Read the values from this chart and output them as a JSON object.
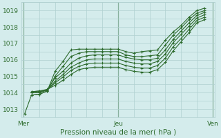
{
  "title": "",
  "xlabel": "Pression niveau de la mer( hPa )",
  "ylabel": "",
  "bg_color": "#d4ecec",
  "grid_color": "#b0d0d0",
  "line_color": "#2d6b2d",
  "x_ticks": [
    0,
    48,
    96
  ],
  "x_tick_labels": [
    "Mer",
    "Jeu",
    "Ven"
  ],
  "ylim": [
    1012.5,
    1019.5
  ],
  "yticks": [
    1013,
    1014,
    1015,
    1016,
    1017,
    1018,
    1019
  ],
  "xlim": [
    -1,
    97
  ],
  "series": [
    [
      0.5,
      1012.7,
      4,
      1013.85,
      8,
      1013.9,
      12,
      1014.1,
      16,
      1015.3,
      20,
      1015.9,
      24,
      1016.6,
      28,
      1016.65,
      32,
      1016.65,
      36,
      1016.65,
      40,
      1016.65,
      44,
      1016.65,
      48,
      1016.65,
      52,
      1016.5,
      56,
      1016.4,
      60,
      1016.5,
      64,
      1016.55,
      68,
      1016.6,
      72,
      1017.2,
      76,
      1017.7,
      80,
      1018.1,
      84,
      1018.6,
      88,
      1019.0,
      92,
      1019.15
    ],
    [
      4,
      1013.85,
      8,
      1013.9,
      12,
      1014.1,
      16,
      1015.0,
      20,
      1015.6,
      24,
      1016.2,
      28,
      1016.4,
      32,
      1016.5,
      36,
      1016.5,
      40,
      1016.5,
      44,
      1016.5,
      48,
      1016.5,
      52,
      1016.3,
      56,
      1016.2,
      60,
      1016.2,
      64,
      1016.25,
      68,
      1016.3,
      72,
      1016.9,
      76,
      1017.5,
      80,
      1017.95,
      84,
      1018.45,
      88,
      1018.85,
      92,
      1019.0
    ],
    [
      4,
      1014.0,
      8,
      1014.0,
      12,
      1014.15,
      16,
      1014.9,
      20,
      1015.3,
      24,
      1015.8,
      28,
      1016.1,
      32,
      1016.25,
      36,
      1016.3,
      40,
      1016.3,
      44,
      1016.3,
      48,
      1016.3,
      52,
      1016.15,
      56,
      1016.05,
      60,
      1016.0,
      64,
      1016.0,
      68,
      1016.1,
      72,
      1016.6,
      76,
      1017.25,
      80,
      1017.75,
      84,
      1018.25,
      88,
      1018.7,
      92,
      1018.9
    ],
    [
      4,
      1014.0,
      8,
      1014.05,
      12,
      1014.15,
      16,
      1014.7,
      20,
      1015.1,
      24,
      1015.55,
      28,
      1015.8,
      32,
      1016.0,
      36,
      1016.05,
      40,
      1016.05,
      44,
      1016.05,
      48,
      1016.05,
      52,
      1015.9,
      56,
      1015.8,
      60,
      1015.75,
      64,
      1015.75,
      68,
      1015.9,
      72,
      1016.35,
      76,
      1017.05,
      80,
      1017.55,
      84,
      1018.05,
      88,
      1018.55,
      92,
      1018.75
    ],
    [
      4,
      1014.05,
      8,
      1014.1,
      12,
      1014.15,
      16,
      1014.6,
      20,
      1014.95,
      24,
      1015.35,
      28,
      1015.6,
      32,
      1015.75,
      36,
      1015.8,
      40,
      1015.8,
      44,
      1015.8,
      48,
      1015.8,
      52,
      1015.65,
      56,
      1015.55,
      60,
      1015.5,
      64,
      1015.5,
      68,
      1015.65,
      72,
      1016.1,
      76,
      1016.8,
      80,
      1017.3,
      84,
      1017.85,
      88,
      1018.4,
      92,
      1018.6
    ],
    [
      4,
      1014.05,
      8,
      1014.1,
      12,
      1014.2,
      16,
      1014.45,
      20,
      1014.75,
      24,
      1015.1,
      28,
      1015.4,
      32,
      1015.5,
      36,
      1015.55,
      40,
      1015.55,
      44,
      1015.55,
      48,
      1015.55,
      52,
      1015.4,
      56,
      1015.3,
      60,
      1015.25,
      64,
      1015.25,
      68,
      1015.4,
      72,
      1015.85,
      76,
      1016.55,
      80,
      1017.1,
      84,
      1017.65,
      88,
      1018.25,
      92,
      1018.45
    ]
  ]
}
